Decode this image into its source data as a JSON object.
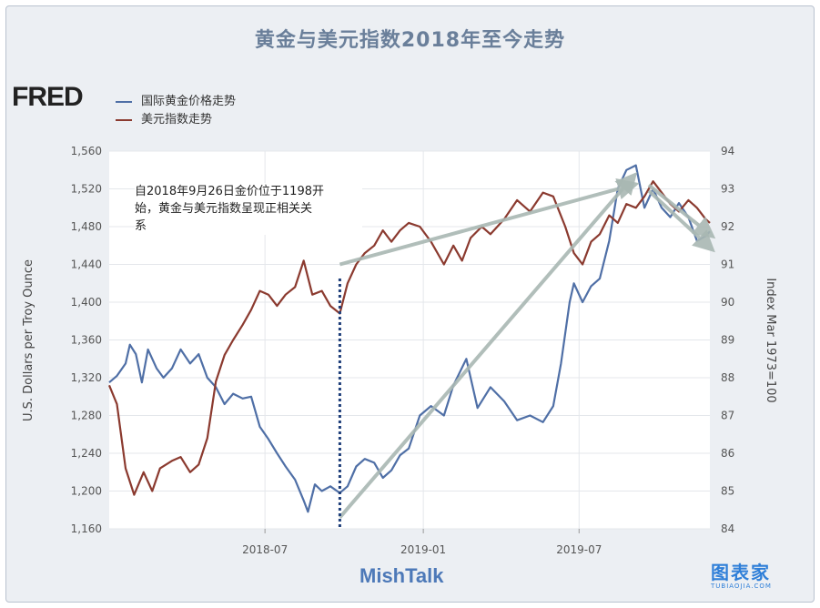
{
  "chart_data": {
    "type": "line",
    "title": "黄金与美元指数2018年至今走势",
    "source_logo": "FRED",
    "x_tick_labels": [
      "2018-07",
      "2019-01",
      "2019-07"
    ],
    "x_range": [
      "2018-01-01",
      "2019-11-30"
    ],
    "y_left": {
      "label": "U.S. Dollars per Troy Ounce",
      "ticks": [
        "1,560",
        "1,520",
        "1,480",
        "1,440",
        "1,400",
        "1,360",
        "1,320",
        "1,280",
        "1,240",
        "1,200",
        "1,160"
      ],
      "range": [
        1160,
        1560
      ]
    },
    "y_right": {
      "label": "Index Mar 1973=100",
      "ticks": [
        "94",
        "93",
        "92",
        "91",
        "90",
        "89",
        "88",
        "87",
        "86",
        "85",
        "84"
      ],
      "range": [
        84,
        94
      ]
    },
    "grid": true,
    "legend_placement": "top-left",
    "series": [
      {
        "name": "国际黄金价格走势",
        "axis": "left",
        "color": "#4f6fa6",
        "points": [
          [
            "2018-01-01",
            1315
          ],
          [
            "2018-01-10",
            1322
          ],
          [
            "2018-01-20",
            1335
          ],
          [
            "2018-01-25",
            1355
          ],
          [
            "2018-02-01",
            1345
          ],
          [
            "2018-02-08",
            1315
          ],
          [
            "2018-02-15",
            1350
          ],
          [
            "2018-02-25",
            1330
          ],
          [
            "2018-03-05",
            1320
          ],
          [
            "2018-03-15",
            1330
          ],
          [
            "2018-03-25",
            1350
          ],
          [
            "2018-04-05",
            1335
          ],
          [
            "2018-04-15",
            1345
          ],
          [
            "2018-04-25",
            1320
          ],
          [
            "2018-05-05",
            1310
          ],
          [
            "2018-05-15",
            1292
          ],
          [
            "2018-05-25",
            1303
          ],
          [
            "2018-06-05",
            1298
          ],
          [
            "2018-06-15",
            1300
          ],
          [
            "2018-06-25",
            1268
          ],
          [
            "2018-07-05",
            1255
          ],
          [
            "2018-07-15",
            1240
          ],
          [
            "2018-07-25",
            1226
          ],
          [
            "2018-08-05",
            1212
          ],
          [
            "2018-08-15",
            1190
          ],
          [
            "2018-08-20",
            1178
          ],
          [
            "2018-08-28",
            1207
          ],
          [
            "2018-09-05",
            1200
          ],
          [
            "2018-09-15",
            1205
          ],
          [
            "2018-09-26",
            1198
          ],
          [
            "2018-10-05",
            1205
          ],
          [
            "2018-10-15",
            1226
          ],
          [
            "2018-10-25",
            1234
          ],
          [
            "2018-11-05",
            1230
          ],
          [
            "2018-11-15",
            1214
          ],
          [
            "2018-11-25",
            1222
          ],
          [
            "2018-12-05",
            1238
          ],
          [
            "2018-12-15",
            1245
          ],
          [
            "2018-12-28",
            1280
          ],
          [
            "2019-01-10",
            1290
          ],
          [
            "2019-01-25",
            1280
          ],
          [
            "2019-02-05",
            1312
          ],
          [
            "2019-02-20",
            1340
          ],
          [
            "2019-03-05",
            1288
          ],
          [
            "2019-03-20",
            1310
          ],
          [
            "2019-04-05",
            1295
          ],
          [
            "2019-04-20",
            1275
          ],
          [
            "2019-05-05",
            1280
          ],
          [
            "2019-05-20",
            1273
          ],
          [
            "2019-06-01",
            1290
          ],
          [
            "2019-06-10",
            1335
          ],
          [
            "2019-06-20",
            1400
          ],
          [
            "2019-06-25",
            1420
          ],
          [
            "2019-07-05",
            1400
          ],
          [
            "2019-07-15",
            1417
          ],
          [
            "2019-07-25",
            1425
          ],
          [
            "2019-08-05",
            1465
          ],
          [
            "2019-08-15",
            1520
          ],
          [
            "2019-08-25",
            1540
          ],
          [
            "2019-09-05",
            1545
          ],
          [
            "2019-09-15",
            1500
          ],
          [
            "2019-09-25",
            1520
          ],
          [
            "2019-10-05",
            1500
          ],
          [
            "2019-10-15",
            1490
          ],
          [
            "2019-10-25",
            1505
          ],
          [
            "2019-11-05",
            1490
          ],
          [
            "2019-11-15",
            1465
          ],
          [
            "2019-11-25",
            1470
          ],
          [
            "2019-11-30",
            1475
          ]
        ]
      },
      {
        "name": "美元指数走势",
        "axis": "right",
        "color": "#8b3a2f",
        "points": [
          [
            "2018-01-01",
            87.8
          ],
          [
            "2018-01-10",
            87.3
          ],
          [
            "2018-01-20",
            85.6
          ],
          [
            "2018-01-30",
            84.9
          ],
          [
            "2018-02-10",
            85.5
          ],
          [
            "2018-02-20",
            85.0
          ],
          [
            "2018-03-01",
            85.6
          ],
          [
            "2018-03-15",
            85.8
          ],
          [
            "2018-03-25",
            85.9
          ],
          [
            "2018-04-05",
            85.5
          ],
          [
            "2018-04-15",
            85.7
          ],
          [
            "2018-04-25",
            86.4
          ],
          [
            "2018-05-05",
            87.9
          ],
          [
            "2018-05-15",
            88.6
          ],
          [
            "2018-05-25",
            89.0
          ],
          [
            "2018-06-05",
            89.4
          ],
          [
            "2018-06-15",
            89.8
          ],
          [
            "2018-06-25",
            90.3
          ],
          [
            "2018-07-05",
            90.2
          ],
          [
            "2018-07-15",
            89.9
          ],
          [
            "2018-07-25",
            90.2
          ],
          [
            "2018-08-05",
            90.4
          ],
          [
            "2018-08-15",
            91.1
          ],
          [
            "2018-08-25",
            90.2
          ],
          [
            "2018-09-05",
            90.3
          ],
          [
            "2018-09-15",
            89.9
          ],
          [
            "2018-09-26",
            89.7
          ],
          [
            "2018-10-05",
            90.5
          ],
          [
            "2018-10-15",
            91.0
          ],
          [
            "2018-10-25",
            91.3
          ],
          [
            "2018-11-05",
            91.5
          ],
          [
            "2018-11-15",
            91.9
          ],
          [
            "2018-11-25",
            91.6
          ],
          [
            "2018-12-05",
            91.9
          ],
          [
            "2018-12-15",
            92.1
          ],
          [
            "2018-12-28",
            92.0
          ],
          [
            "2019-01-10",
            91.6
          ],
          [
            "2019-01-25",
            91.0
          ],
          [
            "2019-02-05",
            91.5
          ],
          [
            "2019-02-15",
            91.1
          ],
          [
            "2019-02-25",
            91.7
          ],
          [
            "2019-03-10",
            92.0
          ],
          [
            "2019-03-20",
            91.8
          ],
          [
            "2019-04-05",
            92.2
          ],
          [
            "2019-04-20",
            92.7
          ],
          [
            "2019-05-05",
            92.4
          ],
          [
            "2019-05-20",
            92.9
          ],
          [
            "2019-06-01",
            92.8
          ],
          [
            "2019-06-15",
            92.0
          ],
          [
            "2019-06-25",
            91.3
          ],
          [
            "2019-07-05",
            91.0
          ],
          [
            "2019-07-15",
            91.6
          ],
          [
            "2019-07-25",
            91.8
          ],
          [
            "2019-08-05",
            92.3
          ],
          [
            "2019-08-15",
            92.1
          ],
          [
            "2019-08-25",
            92.6
          ],
          [
            "2019-09-05",
            92.5
          ],
          [
            "2019-09-15",
            92.8
          ],
          [
            "2019-09-25",
            93.2
          ],
          [
            "2019-10-05",
            92.9
          ],
          [
            "2019-10-15",
            92.6
          ],
          [
            "2019-10-25",
            92.4
          ],
          [
            "2019-11-05",
            92.7
          ],
          [
            "2019-11-15",
            92.5
          ],
          [
            "2019-11-25",
            92.2
          ],
          [
            "2019-11-30",
            92.1
          ]
        ]
      }
    ],
    "annotations": {
      "text_line1": "自2018年9月26日金价位于1198开",
      "text_line2": "始，黄金与美元指数呈现正相关关",
      "text_line3": "系",
      "marker_date": "2018-09-26"
    },
    "trend_arrows": [
      {
        "series": "美元指数走势",
        "from": [
          "2018-09-26",
          91.0
        ],
        "to": [
          "2019-09-01",
          93.1
        ]
      },
      {
        "series": "国际黄金价格走势",
        "from": [
          "2018-09-26",
          1172
        ],
        "to": [
          "2019-09-01",
          1532
        ]
      },
      {
        "series": "美元指数走势",
        "from": [
          "2019-09-20",
          93.1
        ],
        "to": [
          "2019-11-30",
          91.8
        ]
      },
      {
        "series": "国际黄金价格走势",
        "from": [
          "2019-09-20",
          1518
        ],
        "to": [
          "2019-11-30",
          1458
        ]
      }
    ],
    "watermark": "MishTalk",
    "logo": {
      "main": "图表家",
      "sub": "TUBIAOJIA.COM"
    }
  },
  "colors": {
    "gold_series": "#4f6fa6",
    "dollar_series": "#8b3a2f",
    "arrow": "#a9b8b3",
    "plot_bg": "#ffffff",
    "title": "#6a7f9a"
  }
}
